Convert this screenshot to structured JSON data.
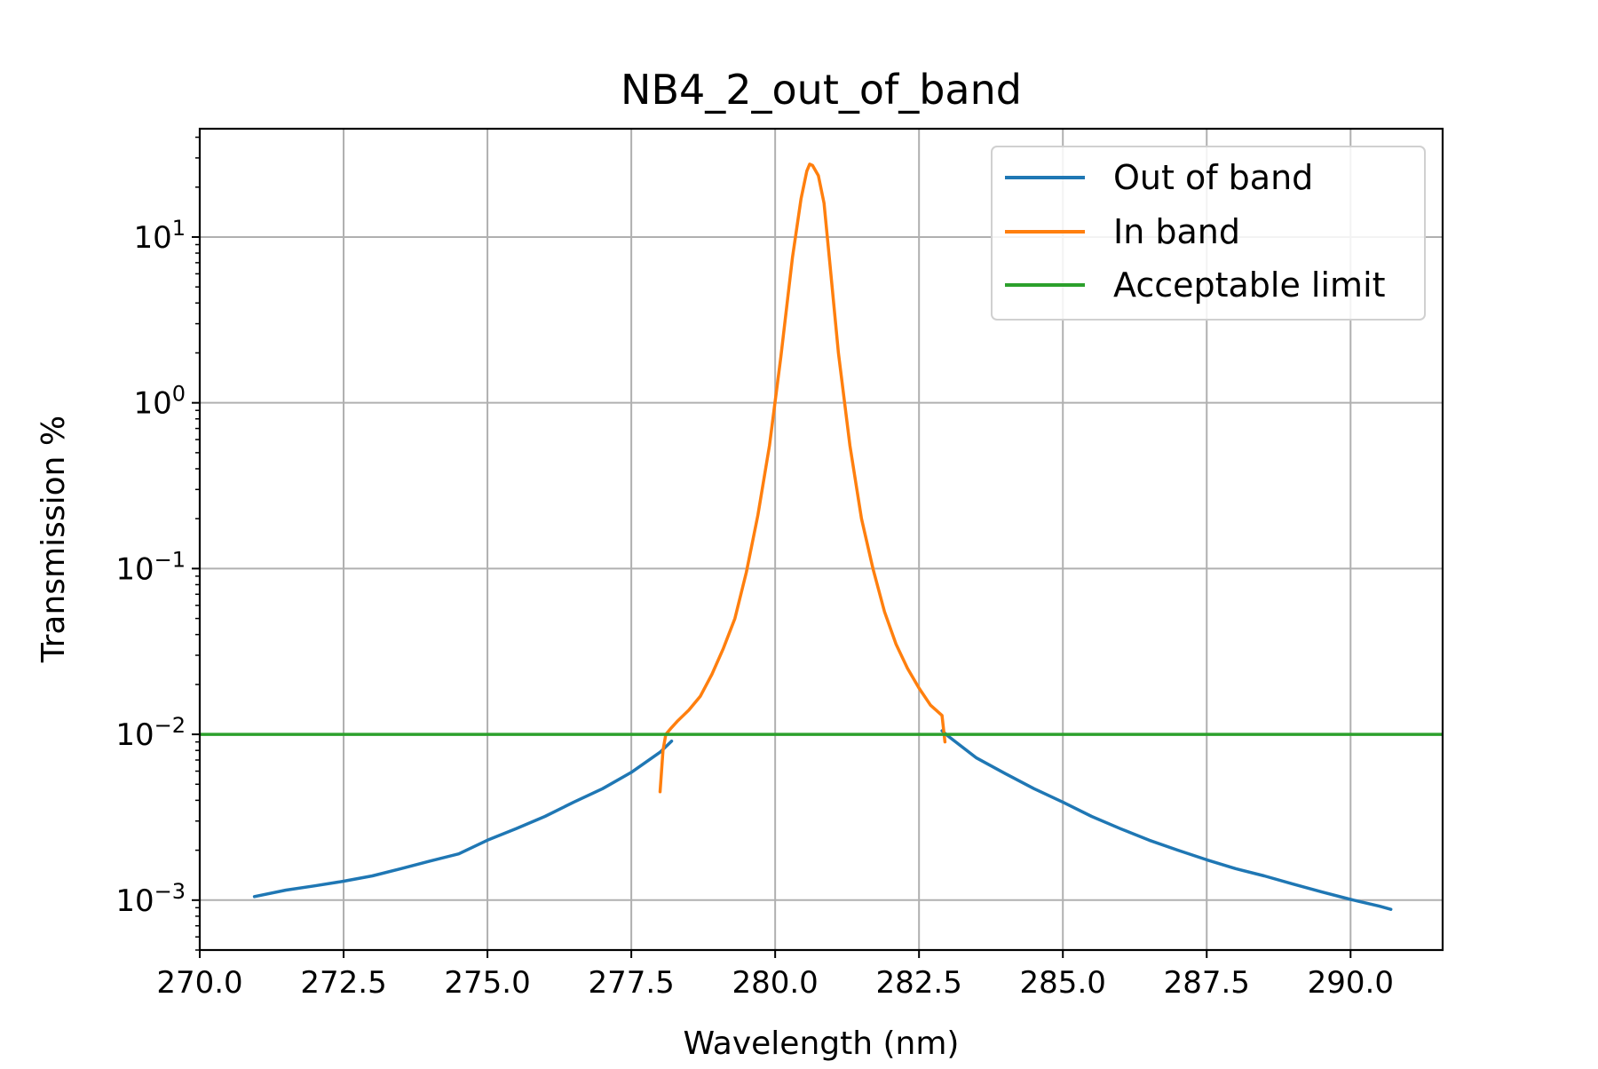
{
  "chart_data": {
    "type": "line",
    "title": "NB4_2_out_of_band",
    "xlabel": "Wavelength (nm)",
    "ylabel": "Transmission %",
    "xlim": [
      270.0,
      291.6
    ],
    "ylim": [
      0.0005,
      45
    ],
    "yscale": "log",
    "grid": true,
    "legend_position": "top-right",
    "xticks": [
      "270.0",
      "272.5",
      "275.0",
      "277.5",
      "280.0",
      "282.5",
      "285.0",
      "287.5",
      "290.0"
    ],
    "xtick_values": [
      270.0,
      272.5,
      275.0,
      277.5,
      280.0,
      282.5,
      285.0,
      287.5,
      290.0
    ],
    "ytick_values": [
      0.001,
      0.01,
      0.1,
      1,
      10
    ],
    "ytick_exponents": [
      "−3",
      "−2",
      "−1",
      "0",
      "1"
    ],
    "ytick_base": "10",
    "series": [
      {
        "name": "Out of band",
        "color": "#1f77b4",
        "segments": [
          {
            "x": [
              270.95,
              271.5,
              272.0,
              272.5,
              273.0,
              273.5,
              274.0,
              274.5,
              275.0,
              275.5,
              276.0,
              276.5,
              277.0,
              277.5,
              278.0,
              278.2
            ],
            "y": [
              0.00105,
              0.00115,
              0.00122,
              0.0013,
              0.0014,
              0.00155,
              0.00172,
              0.0019,
              0.0023,
              0.0027,
              0.0032,
              0.0039,
              0.0047,
              0.0059,
              0.0078,
              0.0091
            ]
          },
          {
            "x": [
              282.9,
              283.0,
              283.5,
              284.0,
              284.5,
              285.0,
              285.5,
              286.0,
              286.5,
              287.0,
              287.5,
              288.0,
              288.5,
              289.0,
              289.5,
              290.0,
              290.5,
              290.7
            ],
            "y": [
              0.0105,
              0.0098,
              0.0072,
              0.0058,
              0.0047,
              0.0039,
              0.0032,
              0.0027,
              0.0023,
              0.002,
              0.00175,
              0.00155,
              0.0014,
              0.00125,
              0.00112,
              0.00101,
              0.00092,
              0.00088
            ]
          }
        ]
      },
      {
        "name": "In band",
        "color": "#ff7f0e",
        "segments": [
          {
            "x": [
              278.0,
              278.05,
              278.1,
              278.2,
              278.3,
              278.5,
              278.7,
              278.9,
              279.1,
              279.3,
              279.5,
              279.7,
              279.9,
              280.1,
              280.3,
              280.45,
              280.55,
              280.6,
              280.65,
              280.75,
              280.85,
              280.95,
              281.1,
              281.3,
              281.5,
              281.7,
              281.9,
              282.1,
              282.3,
              282.5,
              282.7,
              282.9,
              282.95
            ],
            "y": [
              0.0045,
              0.008,
              0.01,
              0.011,
              0.012,
              0.014,
              0.017,
              0.023,
              0.033,
              0.05,
              0.095,
              0.21,
              0.55,
              1.9,
              7.5,
              17.0,
              25.0,
              27.5,
              27.0,
              23.5,
              16.0,
              7.0,
              2.0,
              0.55,
              0.2,
              0.1,
              0.055,
              0.035,
              0.025,
              0.019,
              0.015,
              0.013,
              0.009
            ]
          }
        ]
      },
      {
        "name": "Acceptable limit",
        "color": "#2ca02c",
        "segments": [
          {
            "x": [
              270.0,
              291.6
            ],
            "y": [
              0.01,
              0.01
            ]
          }
        ]
      }
    ]
  }
}
